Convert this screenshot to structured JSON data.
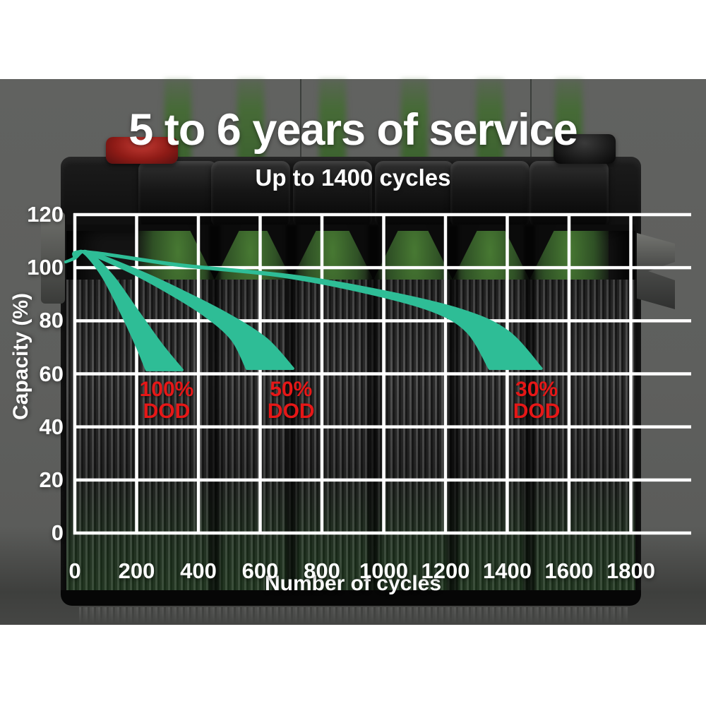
{
  "page": {
    "title": "5 to 6 years of service",
    "subtitle": "Up to 1400 cycles"
  },
  "colors": {
    "curve": "#2ebd96",
    "grid": "#ffffff",
    "annotation": "#e61717",
    "text": "#ffffff",
    "backdrop_gray": "#5e5f5d"
  },
  "chart_data": {
    "type": "line",
    "title": "5 to 6 years of service",
    "subtitle": "Up to 1400 cycles",
    "xlabel": "Number of cycles",
    "ylabel": "Capacity (%)",
    "xlim": [
      0,
      1800
    ],
    "ylim": [
      0,
      120
    ],
    "x_ticks": [
      0,
      200,
      400,
      600,
      800,
      1000,
      1200,
      1400,
      1600,
      1800
    ],
    "y_ticks": [
      0,
      20,
      40,
      60,
      80,
      100,
      120
    ],
    "grid": true,
    "legend": false,
    "series": [
      {
        "name": "100% DOD",
        "label_lines": [
          "100%",
          "DOD"
        ],
        "label_anchor": {
          "cycles": 297,
          "capacity": 50
        },
        "points": [
          [
            0,
            103.5
          ],
          [
            40,
            106
          ],
          [
            120,
            97
          ],
          [
            200,
            84
          ],
          [
            280,
            71
          ],
          [
            347,
            61.5
          ]
        ]
      },
      {
        "name": "50% DOD",
        "label_lines": [
          "50%",
          "DOD"
        ],
        "label_anchor": {
          "cycles": 700,
          "capacity": 50
        },
        "points": [
          [
            0,
            103.5
          ],
          [
            40,
            106
          ],
          [
            200,
            99
          ],
          [
            350,
            91
          ],
          [
            500,
            82
          ],
          [
            620,
            73
          ],
          [
            706,
            62
          ]
        ]
      },
      {
        "name": "30% DOD",
        "label_lines": [
          "30%",
          "DOD"
        ],
        "label_anchor": {
          "cycles": 1495,
          "capacity": 50
        },
        "points": [
          [
            0,
            103.5
          ],
          [
            40,
            106
          ],
          [
            350,
            101
          ],
          [
            700,
            97
          ],
          [
            1000,
            91
          ],
          [
            1250,
            84
          ],
          [
            1400,
            76
          ],
          [
            1510,
            62
          ]
        ]
      }
    ]
  }
}
